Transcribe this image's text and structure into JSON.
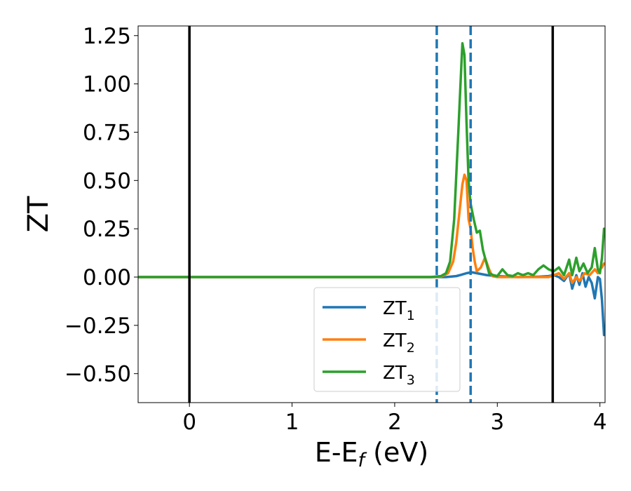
{
  "chart_data": {
    "type": "line",
    "title": "",
    "xlabel": {
      "main": "E-E",
      "sub": "f",
      "unit": " (eV)"
    },
    "ylabel": "ZT",
    "xlim": [
      -0.5,
      4.05
    ],
    "ylim": [
      -0.65,
      1.3
    ],
    "xticks": [
      0,
      1,
      2,
      3,
      4
    ],
    "yticks": [
      -0.5,
      -0.25,
      0.0,
      0.25,
      0.5,
      0.75,
      1.0,
      1.25
    ],
    "ytick_labels": [
      "−0.50",
      "−0.25",
      "0.00",
      "0.25",
      "0.50",
      "0.75",
      "1.00",
      "1.25"
    ],
    "grid": false,
    "legend_position": "lower-center",
    "vertical_lines": [
      {
        "x": 0.0,
        "style": "solid",
        "color": "#000000"
      },
      {
        "x": 2.41,
        "style": "dashed",
        "color": "#1f77b4"
      },
      {
        "x": 2.74,
        "style": "dashed",
        "color": "#1f77b4"
      },
      {
        "x": 3.54,
        "style": "solid",
        "color": "#000000"
      }
    ],
    "series": [
      {
        "name": {
          "base": "ZT",
          "sub": "1"
        },
        "color": "#1f77b4",
        "points": [
          [
            -0.5,
            0
          ],
          [
            2.3,
            0
          ],
          [
            2.5,
            0
          ],
          [
            2.6,
            0.005
          ],
          [
            2.65,
            0.012
          ],
          [
            2.7,
            0.02
          ],
          [
            2.75,
            0.025
          ],
          [
            2.8,
            0.02
          ],
          [
            2.9,
            0.01
          ],
          [
            3.0,
            0.005
          ],
          [
            3.2,
            0
          ],
          [
            3.4,
            0.002
          ],
          [
            3.5,
            0.005
          ],
          [
            3.55,
            0.01
          ],
          [
            3.6,
            0
          ],
          [
            3.65,
            -0.02
          ],
          [
            3.7,
            0.02
          ],
          [
            3.73,
            -0.06
          ],
          [
            3.77,
            0.01
          ],
          [
            3.8,
            -0.04
          ],
          [
            3.83,
            0.02
          ],
          [
            3.86,
            -0.05
          ],
          [
            3.89,
            0
          ],
          [
            3.92,
            -0.03
          ],
          [
            3.95,
            -0.11
          ],
          [
            3.98,
            0
          ],
          [
            4.0,
            -0.01
          ],
          [
            4.02,
            -0.12
          ],
          [
            4.04,
            -0.3
          ]
        ]
      },
      {
        "name": {
          "base": "ZT",
          "sub": "2"
        },
        "color": "#ff7f0e",
        "points": [
          [
            -0.5,
            0
          ],
          [
            2.35,
            0
          ],
          [
            2.45,
            0.002
          ],
          [
            2.52,
            0.02
          ],
          [
            2.57,
            0.08
          ],
          [
            2.6,
            0.18
          ],
          [
            2.63,
            0.33
          ],
          [
            2.66,
            0.48
          ],
          [
            2.68,
            0.53
          ],
          [
            2.7,
            0.5
          ],
          [
            2.72,
            0.3
          ],
          [
            2.74,
            0.25
          ],
          [
            2.76,
            0.15
          ],
          [
            2.78,
            0.08
          ],
          [
            2.8,
            0.03
          ],
          [
            2.84,
            0.05
          ],
          [
            2.88,
            0.1
          ],
          [
            2.92,
            0.04
          ],
          [
            2.95,
            0.005
          ],
          [
            3.0,
            0
          ],
          [
            3.3,
            0
          ],
          [
            3.5,
            0
          ],
          [
            3.6,
            0.02
          ],
          [
            3.65,
            -0.01
          ],
          [
            3.7,
            0.02
          ],
          [
            3.73,
            -0.03
          ],
          [
            3.77,
            0
          ],
          [
            3.8,
            -0.02
          ],
          [
            3.85,
            0.02
          ],
          [
            3.9,
            0.01
          ],
          [
            3.95,
            0.04
          ],
          [
            3.98,
            0.02
          ],
          [
            4.0,
            0.04
          ],
          [
            4.02,
            0.05
          ],
          [
            4.04,
            0.07
          ]
        ]
      },
      {
        "name": {
          "base": "ZT",
          "sub": "3"
        },
        "color": "#2ca02c",
        "points": [
          [
            -0.5,
            0
          ],
          [
            2.35,
            0
          ],
          [
            2.45,
            0.005
          ],
          [
            2.5,
            0.02
          ],
          [
            2.54,
            0.08
          ],
          [
            2.58,
            0.3
          ],
          [
            2.62,
            0.75
          ],
          [
            2.65,
            1.1
          ],
          [
            2.66,
            1.21
          ],
          [
            2.68,
            1.15
          ],
          [
            2.7,
            0.8
          ],
          [
            2.72,
            0.5
          ],
          [
            2.74,
            0.38
          ],
          [
            2.77,
            0.3
          ],
          [
            2.8,
            0.23
          ],
          [
            2.83,
            0.24
          ],
          [
            2.86,
            0.14
          ],
          [
            2.89,
            0.08
          ],
          [
            2.92,
            0.02
          ],
          [
            2.96,
            0.01
          ],
          [
            3.0,
            0.005
          ],
          [
            3.05,
            0.04
          ],
          [
            3.1,
            0.01
          ],
          [
            3.15,
            0.005
          ],
          [
            3.2,
            0.02
          ],
          [
            3.25,
            0.01
          ],
          [
            3.3,
            0.02
          ],
          [
            3.35,
            0.01
          ],
          [
            3.4,
            0.04
          ],
          [
            3.45,
            0.06
          ],
          [
            3.5,
            0.04
          ],
          [
            3.55,
            0.03
          ],
          [
            3.6,
            0.05
          ],
          [
            3.65,
            0.01
          ],
          [
            3.7,
            0.09
          ],
          [
            3.73,
            0.01
          ],
          [
            3.77,
            0.1
          ],
          [
            3.8,
            0.03
          ],
          [
            3.84,
            0.07
          ],
          [
            3.88,
            0.02
          ],
          [
            3.92,
            0.05
          ],
          [
            3.95,
            0.15
          ],
          [
            3.98,
            0.04
          ],
          [
            4.0,
            0.02
          ],
          [
            4.02,
            0.1
          ],
          [
            4.04,
            0.25
          ]
        ]
      }
    ]
  }
}
